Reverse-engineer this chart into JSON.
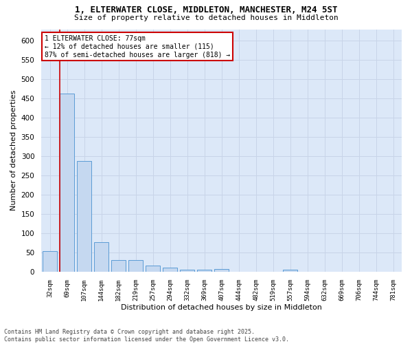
{
  "title_line1": "1, ELTERWATER CLOSE, MIDDLETON, MANCHESTER, M24 5ST",
  "title_line2": "Size of property relative to detached houses in Middleton",
  "xlabel": "Distribution of detached houses by size in Middleton",
  "ylabel": "Number of detached properties",
  "categories": [
    "32sqm",
    "69sqm",
    "107sqm",
    "144sqm",
    "182sqm",
    "219sqm",
    "257sqm",
    "294sqm",
    "332sqm",
    "369sqm",
    "407sqm",
    "444sqm",
    "482sqm",
    "519sqm",
    "557sqm",
    "594sqm",
    "632sqm",
    "669sqm",
    "706sqm",
    "744sqm",
    "781sqm"
  ],
  "values": [
    53,
    463,
    287,
    77,
    31,
    31,
    16,
    10,
    5,
    6,
    7,
    0,
    0,
    0,
    5,
    0,
    0,
    0,
    0,
    0,
    0
  ],
  "bar_color": "#c5d8f0",
  "bar_edge_color": "#5b9bd5",
  "vline_color": "#cc0000",
  "vline_x_index": 1,
  "annotation_text": "1 ELTERWATER CLOSE: 77sqm\n← 12% of detached houses are smaller (115)\n87% of semi-detached houses are larger (818) →",
  "annotation_box_color": "#cc0000",
  "ylim": [
    0,
    630
  ],
  "yticks": [
    0,
    50,
    100,
    150,
    200,
    250,
    300,
    350,
    400,
    450,
    500,
    550,
    600
  ],
  "grid_color": "#c8d4e8",
  "background_color": "#dce8f8",
  "footer_line1": "Contains HM Land Registry data © Crown copyright and database right 2025.",
  "footer_line2": "Contains public sector information licensed under the Open Government Licence v3.0.",
  "fig_width": 6.0,
  "fig_height": 5.0,
  "dpi": 100
}
